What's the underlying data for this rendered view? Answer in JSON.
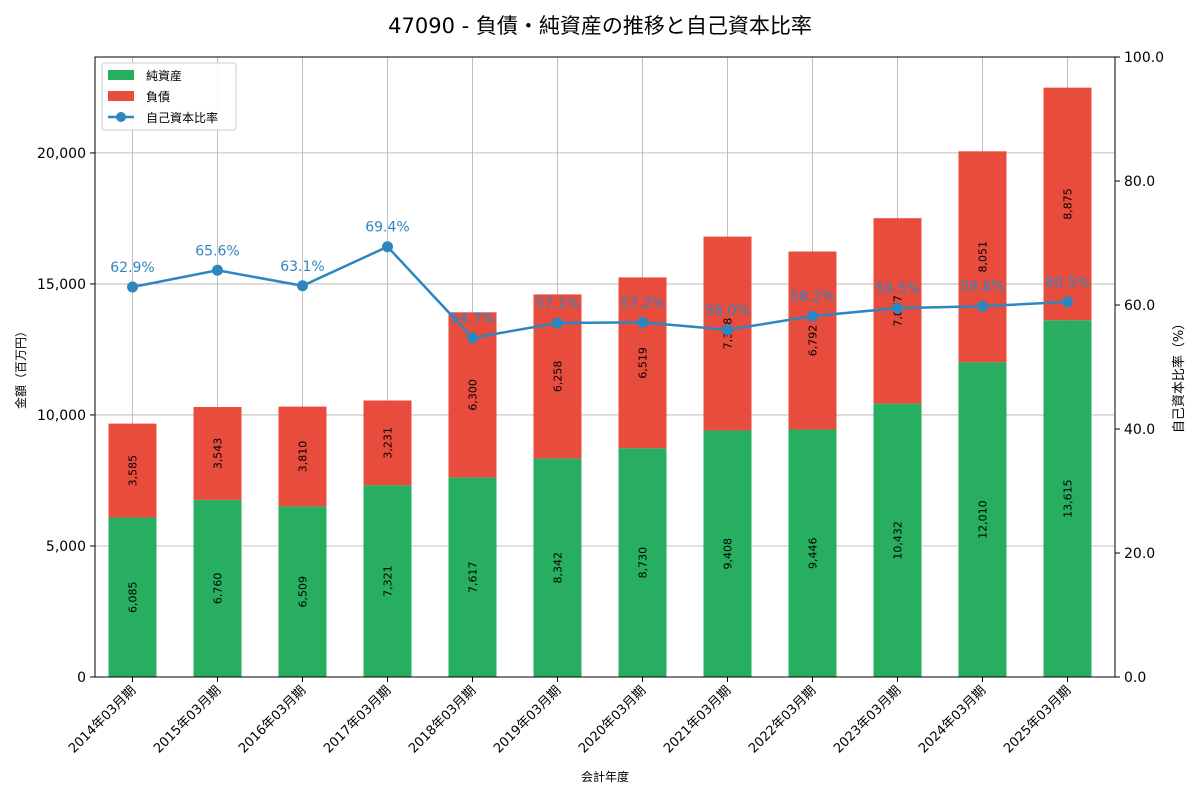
{
  "chart_data": {
    "type": "bar",
    "title": "47090 - 負債・純資産の推移と自己資本比率",
    "xlabel": "会計年度",
    "ylabel": "金額（百万円）",
    "y2label": "自己資本比率（%）",
    "categories": [
      "2014年03月期",
      "2015年03月期",
      "2016年03月期",
      "2017年03月期",
      "2018年03月期",
      "2019年03月期",
      "2020年03月期",
      "2021年03月期",
      "2022年03月期",
      "2023年03月期",
      "2024年03月期",
      "2025年03月期"
    ],
    "series": [
      {
        "name": "純資産",
        "kind": "bar",
        "stack": 0,
        "color": "#27ae60",
        "values": [
          6085,
          6760,
          6509,
          7321,
          7617,
          8342,
          8730,
          9408,
          9446,
          10432,
          12010,
          13615
        ],
        "labels": [
          "6,085",
          "6,760",
          "6,509",
          "7,321",
          "7,617",
          "8,342",
          "8,730",
          "9,408",
          "9,446",
          "10,432",
          "12,010",
          "13,615"
        ]
      },
      {
        "name": "負債",
        "kind": "bar",
        "stack": 1,
        "color": "#e74c3c",
        "values": [
          3585,
          3543,
          3810,
          3231,
          6300,
          6258,
          6519,
          7398,
          6792,
          7077,
          8051,
          8875
        ],
        "labels": [
          "3,585",
          "3,543",
          "3,810",
          "3,231",
          "6,300",
          "6,258",
          "6,519",
          "7,398",
          "6,792",
          "7,077",
          "8,051",
          "8,875"
        ]
      },
      {
        "name": "自己資本比率",
        "kind": "line",
        "axis": "right",
        "color": "#2e86c1",
        "values": [
          62.9,
          65.6,
          63.1,
          69.4,
          54.7,
          57.1,
          57.2,
          56.0,
          58.2,
          59.5,
          59.8,
          60.5
        ],
        "labels": [
          "62.9%",
          "65.6%",
          "63.1%",
          "69.4%",
          "54.7%",
          "57.1%",
          "57.2%",
          "56.0%",
          "58.2%",
          "59.5%",
          "59.8%",
          "60.5%"
        ]
      }
    ],
    "ylim": [
      0,
      23660
    ],
    "y2lim": [
      0,
      100
    ],
    "yticks": [
      0,
      5000,
      10000,
      15000,
      20000
    ],
    "ytick_labels": [
      "0",
      "5,000",
      "10,000",
      "15,000",
      "20,000"
    ],
    "y2ticks": [
      0,
      20,
      40,
      60,
      80,
      100
    ],
    "y2tick_labels": [
      "0.0",
      "20.0",
      "40.0",
      "60.0",
      "80.0",
      "100.0"
    ],
    "grid": true,
    "legend_position": "top-left"
  }
}
